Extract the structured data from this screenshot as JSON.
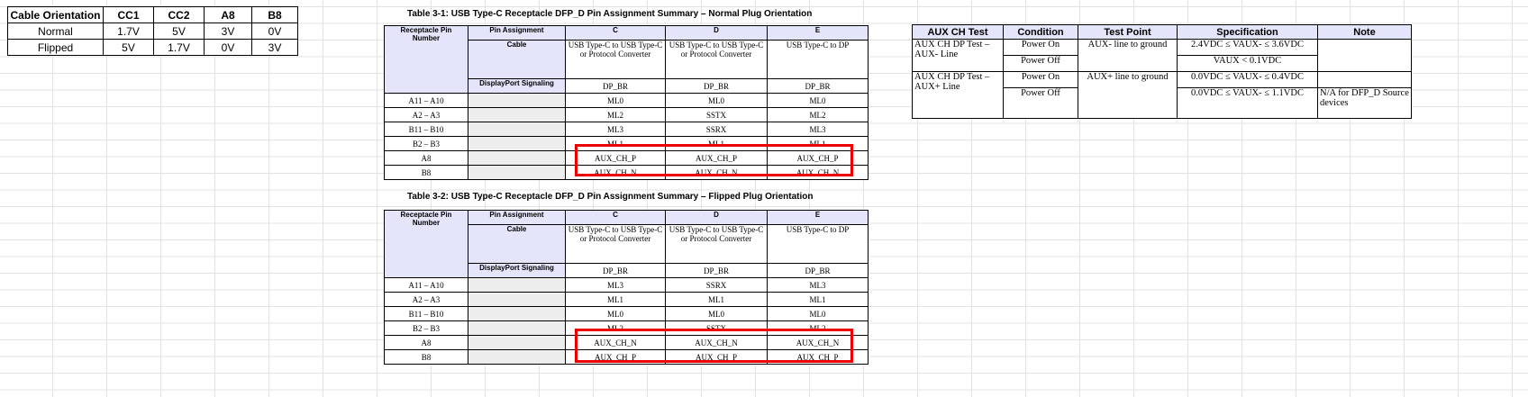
{
  "cable_table": {
    "headers": [
      "Cable Orientation",
      "CC1",
      "CC2",
      "A8",
      "B8"
    ],
    "rows": [
      [
        "Normal",
        "1.7V",
        "5V",
        "3V",
        "0V"
      ],
      [
        "Flipped",
        "5V",
        "1.7V",
        "0V",
        "3V"
      ]
    ]
  },
  "table1": {
    "title": "Table 3-1: USB Type-C Receptacle DFP_D Pin Assignment Summary – Normal Plug Orientation",
    "h_pin": "Receptacle Pin Number",
    "h_assign": "Pin Assignment",
    "h_cable": "Cable",
    "h_dp": "DisplayPort Signaling",
    "cols": [
      "C",
      "D",
      "E"
    ],
    "cable": [
      "USB Type-C to USB Type-C or Protocol Converter",
      "USB Type-C to USB Type-C or Protocol Converter",
      "USB Type-C to DP"
    ],
    "dp": [
      "DP_BR",
      "DP_BR",
      "DP_BR"
    ],
    "rows": [
      [
        "A11 – A10",
        "ML0",
        "ML0",
        "ML0"
      ],
      [
        "A2 – A3",
        "ML2",
        "SSTX",
        "ML2"
      ],
      [
        "B11 – B10",
        "ML3",
        "SSRX",
        "ML3"
      ],
      [
        "B2 – B3",
        "ML1",
        "ML1",
        "ML1"
      ],
      [
        "A8",
        "AUX_CH_P",
        "AUX_CH_P",
        "AUX_CH_P"
      ],
      [
        "B8",
        "AUX_CH_N",
        "AUX_CH_N",
        "AUX_CH_N"
      ]
    ]
  },
  "table2": {
    "title": "Table 3-2: USB Type-C Receptacle DFP_D Pin Assignment Summary – Flipped Plug Orientation",
    "h_pin": "Receptacle Pin Number",
    "h_assign": "Pin Assignment",
    "h_cable": "Cable",
    "h_dp": "DisplayPort Signaling",
    "cols": [
      "C",
      "D",
      "E"
    ],
    "cable": [
      "USB Type-C to USB Type-C or Protocol Converter",
      "USB Type-C to USB Type-C or Protocol Converter",
      "USB Type-C to DP"
    ],
    "dp": [
      "DP_BR",
      "DP_BR",
      "DP_BR"
    ],
    "rows": [
      [
        "A11 – A10",
        "ML3",
        "SSRX",
        "ML3"
      ],
      [
        "A2 – A3",
        "ML1",
        "ML1",
        "ML1"
      ],
      [
        "B11 – B10",
        "ML0",
        "ML0",
        "ML0"
      ],
      [
        "B2 – B3",
        "ML2",
        "SSTX",
        "ML2"
      ],
      [
        "A8",
        "AUX_CH_N",
        "AUX_CH_N",
        "AUX_CH_N"
      ],
      [
        "B8",
        "AUX_CH_P",
        "AUX_CH_P",
        "AUX_CH_P"
      ]
    ]
  },
  "aux": {
    "headers": [
      "AUX CH Test",
      "Condition",
      "Test Point",
      "Specification",
      "Note"
    ],
    "test1": "AUX CH DP Test – AUX- Line",
    "test2": "AUX CH DP Test – AUX+ Line",
    "cond": [
      "Power On",
      "Power Off",
      "Power On",
      "Power Off"
    ],
    "tp1": "AUX- line to ground",
    "tp2": "AUX+ line to ground",
    "spec": [
      "2.4VDC ≤ VAUX- ≤ 3.6VDC",
      "VAUX < 0.1VDC",
      "0.0VDC ≤ VAUX- ≤ 0.4VDC",
      "0.0VDC ≤ VAUX- ≤ 1.1VDC"
    ],
    "note": "N/A for DFP_D Source devices"
  }
}
